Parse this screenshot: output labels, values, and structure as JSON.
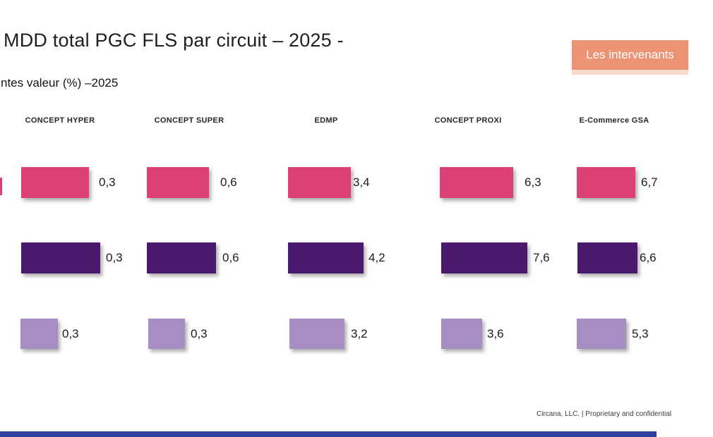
{
  "page": {
    "title": "MDD total PGC FLS par circuit – 2025 -",
    "subtitle": "ntes valeur (%) –2025"
  },
  "cta": {
    "label": "Les intervenants"
  },
  "footer": {
    "text": "Circana, LLC. |  Proprietary and confidential"
  },
  "colors": {
    "pink": "#DB4077",
    "dark_purple": "#4A186C",
    "light_purple": "#A78EC2",
    "cta_orange": "#EC9373",
    "cta_orange_light": "#F8DCCB",
    "bottom_bar_blue": "#2F3F9F",
    "title_text": "#1F1F1F"
  },
  "chart_data": {
    "type": "bar",
    "title": "MDD total PGC FLS par circuit – 2025 -",
    "subtitle_visible": "ntes valeur (%) –2025",
    "categories": [
      "CONCEPT HYPER",
      "CONCEPT SUPER",
      "EDMP",
      "CONCEPT PROXI",
      "E-Commerce GSA"
    ],
    "value_format": "comma-decimal-percent",
    "legend": "none",
    "series": [
      {
        "name": "row-pink",
        "color": "#DB4077",
        "values": [
          0.3,
          0.6,
          3.4,
          6.3,
          6.7
        ],
        "labels": [
          "0,3",
          "0,6",
          "3,4",
          "6,3",
          "6,7"
        ]
      },
      {
        "name": "row-dark-purple",
        "color": "#4A186C",
        "values": [
          0.3,
          0.6,
          4.2,
          7.6,
          6.6
        ],
        "labels": [
          "0,3",
          "0,6",
          "4,2",
          "7,6",
          "6,6"
        ]
      },
      {
        "name": "row-light-purple",
        "color": "#A78EC2",
        "values": [
          0.3,
          0.3,
          3.2,
          3.6,
          5.3
        ],
        "labels": [
          "0,3",
          "0,3",
          "3,2",
          "3,6",
          "5,3"
        ]
      }
    ]
  }
}
